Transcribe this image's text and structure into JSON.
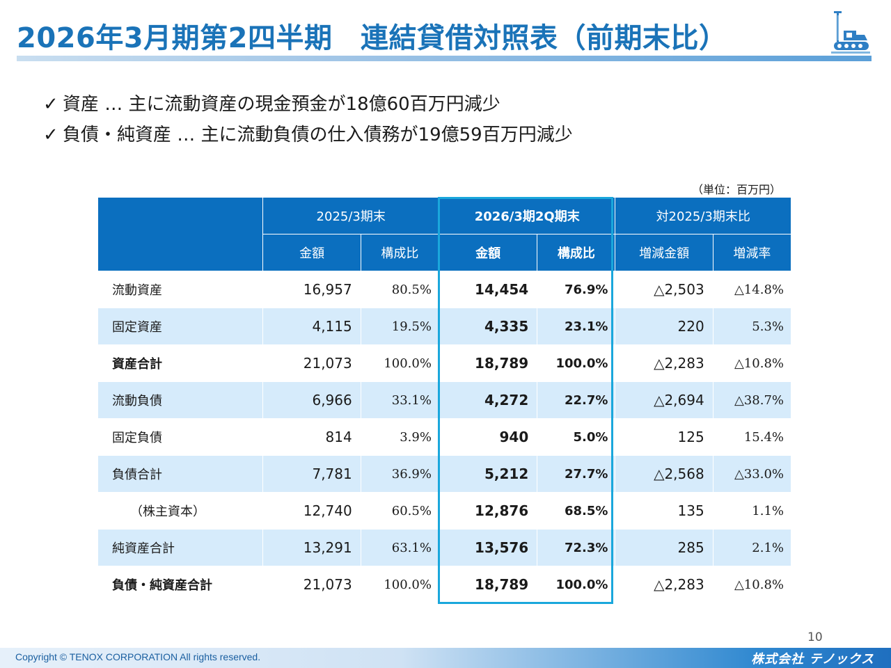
{
  "header": {
    "title": "2026年3月期第2四半期　連結貸借対照表（前期末比）"
  },
  "bullets": [
    "資産 … 主に流動資産の現金預金が18億60百万円減少",
    "負債・純資産 … 主に流動負債の仕入債務が19億59百万円減少"
  ],
  "check_mark": "✓",
  "unit": "（単位：百万円）",
  "table": {
    "group_headers": [
      "2025/3期末",
      "2026/3期2Q期末",
      "対2025/3期末比"
    ],
    "sub_headers": [
      "金額",
      "構成比",
      "金額",
      "構成比",
      "増減金額",
      "増減率"
    ],
    "rows": [
      {
        "label": "流動資産",
        "prev_amount": "16,957",
        "prev_ratio": "80.5%",
        "cur_amount": "14,454",
        "cur_ratio": "76.9%",
        "diff_amount": "△2,503",
        "diff_rate": "△14.8%"
      },
      {
        "label": "固定資産",
        "prev_amount": "4,115",
        "prev_ratio": "19.5%",
        "cur_amount": "4,335",
        "cur_ratio": "23.1%",
        "diff_amount": "220",
        "diff_rate": "5.3%"
      },
      {
        "label": "資産合計",
        "prev_amount": "21,073",
        "prev_ratio": "100.0%",
        "cur_amount": "18,789",
        "cur_ratio": "100.0%",
        "diff_amount": "△2,283",
        "diff_rate": "△10.8%"
      },
      {
        "label": "流動負債",
        "prev_amount": "6,966",
        "prev_ratio": "33.1%",
        "cur_amount": "4,272",
        "cur_ratio": "22.7%",
        "diff_amount": "△2,694",
        "diff_rate": "△38.7%"
      },
      {
        "label": "固定負債",
        "prev_amount": "814",
        "prev_ratio": "3.9%",
        "cur_amount": "940",
        "cur_ratio": "5.0%",
        "diff_amount": "125",
        "diff_rate": "15.4%"
      },
      {
        "label": "負債合計",
        "prev_amount": "7,781",
        "prev_ratio": "36.9%",
        "cur_amount": "5,212",
        "cur_ratio": "27.7%",
        "diff_amount": "△2,568",
        "diff_rate": "△33.0%"
      },
      {
        "label": "（株主資本）",
        "prev_amount": "12,740",
        "prev_ratio": "60.5%",
        "cur_amount": "12,876",
        "cur_ratio": "68.5%",
        "diff_amount": "135",
        "diff_rate": "1.1%"
      },
      {
        "label": "純資産合計",
        "prev_amount": "13,291",
        "prev_ratio": "63.1%",
        "cur_amount": "13,576",
        "cur_ratio": "72.3%",
        "diff_amount": "285",
        "diff_rate": "2.1%"
      },
      {
        "label": "負債・純資産合計",
        "prev_amount": "21,073",
        "prev_ratio": "100.0%",
        "cur_amount": "18,789",
        "cur_ratio": "100.0%",
        "diff_amount": "△2,283",
        "diff_rate": "△10.8%"
      }
    ]
  },
  "footer": {
    "page_number": "10",
    "copyright": "Copyright © TENOX CORPORATION All rights reserved.",
    "brand": "株式会社 テノックス"
  },
  "colors": {
    "accent": "#1a73b8",
    "header_bg": "#0b6fbf",
    "alt_row": "#d6ebfb",
    "highlight": "#1aa7dc"
  },
  "icons": {
    "logo": "construction-machine-icon"
  }
}
